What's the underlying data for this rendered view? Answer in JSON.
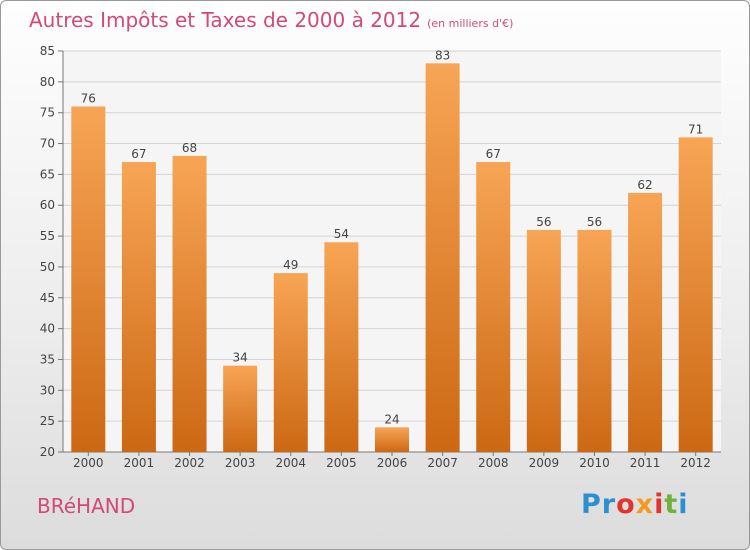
{
  "header": {
    "title": "Autres Impôts et Taxes de 2000 à 2012",
    "subtitle": "(en milliers d'€)"
  },
  "footer": {
    "commune": "BRéHAND",
    "logo_letters": [
      "Pr",
      "o",
      "x",
      "i",
      "t",
      "i"
    ]
  },
  "colors": {
    "title": "#d2497a",
    "bar_top": "#f7a555",
    "bar_bottom": "#cc6814"
  },
  "chart_data": {
    "type": "bar",
    "categories": [
      "2000",
      "2001",
      "2002",
      "2003",
      "2004",
      "2005",
      "2006",
      "2007",
      "2008",
      "2009",
      "2010",
      "2011",
      "2012"
    ],
    "values": [
      76,
      67,
      68,
      34,
      49,
      54,
      24,
      83,
      67,
      56,
      56,
      62,
      71
    ],
    "title": "Autres Impôts et Taxes de 2000 à 2012",
    "subtitle": "(en milliers d'€)",
    "ylim": [
      20,
      85
    ],
    "yticks": [
      20,
      25,
      30,
      35,
      40,
      45,
      50,
      55,
      60,
      65,
      70,
      75,
      80,
      85
    ],
    "grid": true,
    "data_labels": true
  }
}
